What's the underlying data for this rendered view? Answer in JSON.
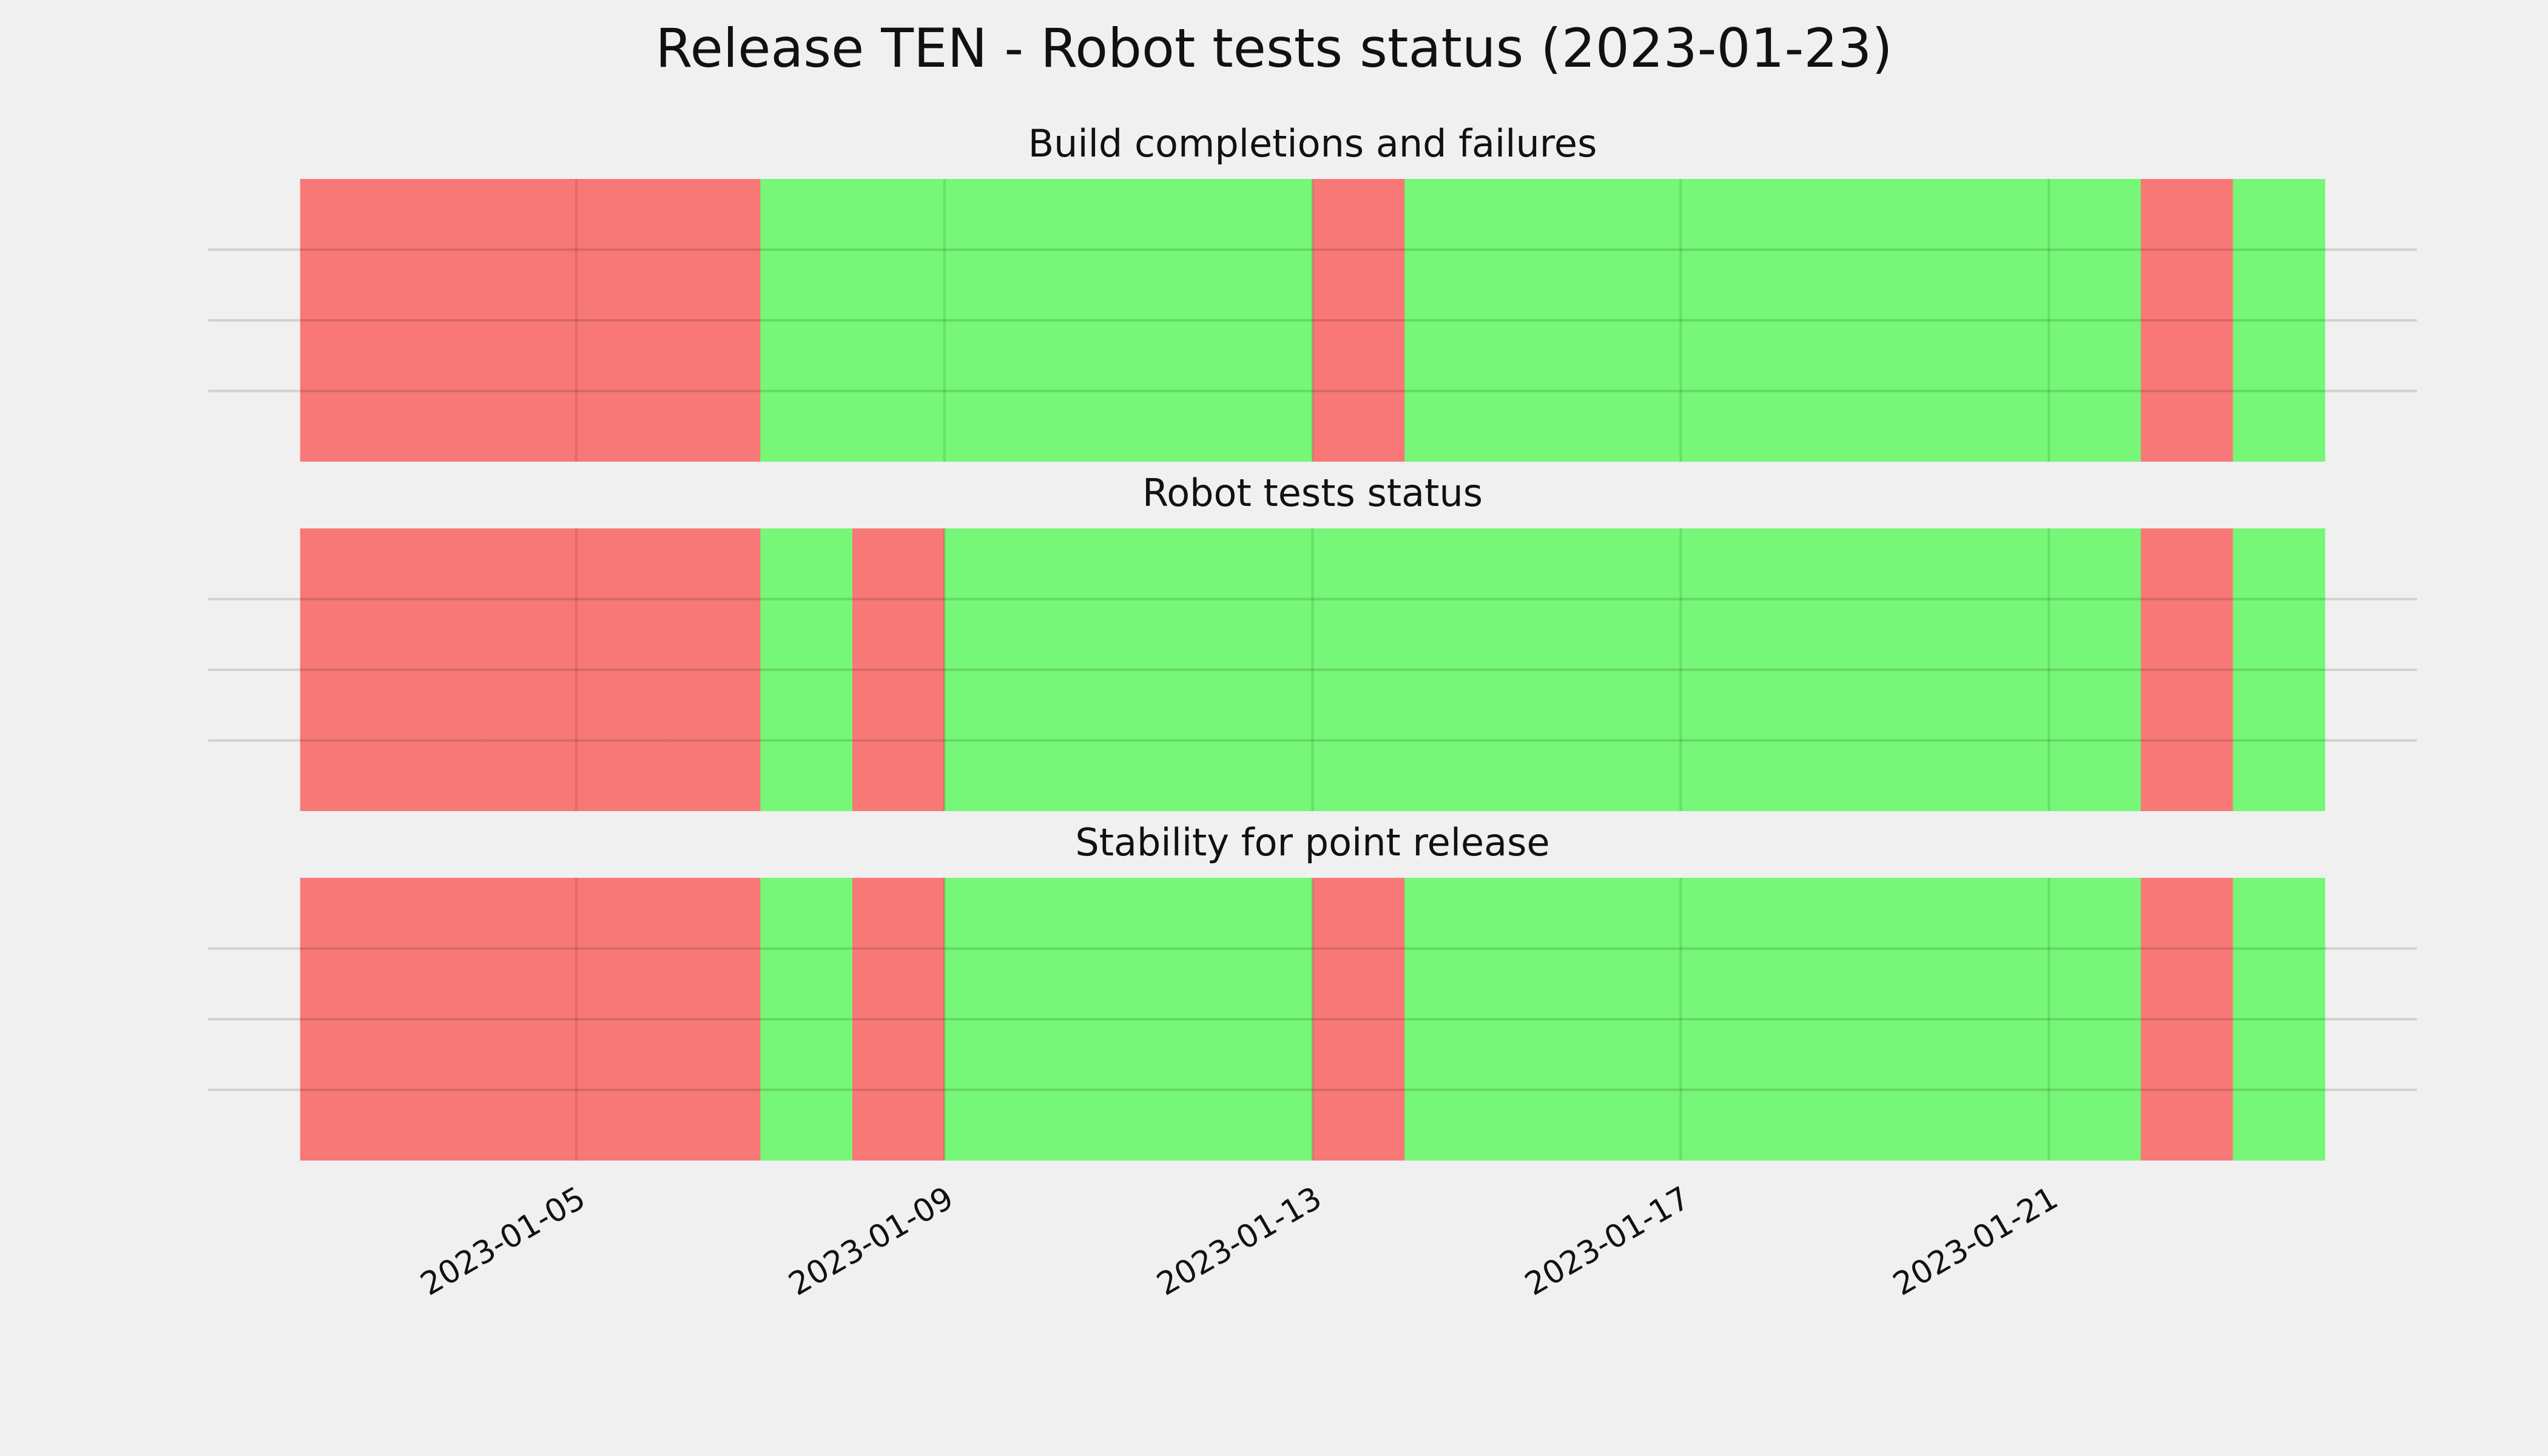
{
  "title": "Release TEN - Robot tests status (2023-01-23)",
  "chart_data": [
    {
      "type": "timeline",
      "title": "Build completions and failures",
      "x": [
        "2023-01-02",
        "2023-01-03",
        "2023-01-04",
        "2023-01-05",
        "2023-01-06",
        "2023-01-07",
        "2023-01-08",
        "2023-01-09",
        "2023-01-10",
        "2023-01-11",
        "2023-01-12",
        "2023-01-13",
        "2023-01-14",
        "2023-01-15",
        "2023-01-16",
        "2023-01-17",
        "2023-01-18",
        "2023-01-19",
        "2023-01-20",
        "2023-01-21",
        "2023-01-22",
        "2023-01-23"
      ],
      "values": [
        0,
        0,
        0,
        0,
        0,
        1,
        1,
        1,
        1,
        1,
        1,
        0,
        1,
        1,
        1,
        1,
        1,
        1,
        1,
        1,
        0,
        1
      ],
      "status_colors": [
        "#f77877",
        "#76f777"
      ],
      "xlim": [
        "2023-01-01",
        "2023-01-25"
      ],
      "xticks": [
        "2023-01-05",
        "2023-01-09",
        "2023-01-13",
        "2023-01-17",
        "2023-01-21"
      ],
      "grid": true
    },
    {
      "type": "timeline",
      "title": "Robot tests status",
      "x": [
        "2023-01-02",
        "2023-01-03",
        "2023-01-04",
        "2023-01-05",
        "2023-01-06",
        "2023-01-07",
        "2023-01-08",
        "2023-01-09",
        "2023-01-10",
        "2023-01-11",
        "2023-01-12",
        "2023-01-13",
        "2023-01-14",
        "2023-01-15",
        "2023-01-16",
        "2023-01-17",
        "2023-01-18",
        "2023-01-19",
        "2023-01-20",
        "2023-01-21",
        "2023-01-22",
        "2023-01-23"
      ],
      "values": [
        0,
        0,
        0,
        0,
        0,
        1,
        0,
        1,
        1,
        1,
        1,
        1,
        1,
        1,
        1,
        1,
        1,
        1,
        1,
        1,
        0,
        1
      ],
      "status_colors": [
        "#f77877",
        "#76f777"
      ],
      "xlim": [
        "2023-01-01",
        "2023-01-25"
      ],
      "xticks": [
        "2023-01-05",
        "2023-01-09",
        "2023-01-13",
        "2023-01-17",
        "2023-01-21"
      ],
      "grid": true
    },
    {
      "type": "timeline",
      "title": "Stability for point release",
      "x": [
        "2023-01-02",
        "2023-01-03",
        "2023-01-04",
        "2023-01-05",
        "2023-01-06",
        "2023-01-07",
        "2023-01-08",
        "2023-01-09",
        "2023-01-10",
        "2023-01-11",
        "2023-01-12",
        "2023-01-13",
        "2023-01-14",
        "2023-01-15",
        "2023-01-16",
        "2023-01-17",
        "2023-01-18",
        "2023-01-19",
        "2023-01-20",
        "2023-01-21",
        "2023-01-22",
        "2023-01-23"
      ],
      "values": [
        0,
        0,
        0,
        0,
        0,
        1,
        0,
        1,
        1,
        1,
        1,
        0,
        1,
        1,
        1,
        1,
        1,
        1,
        1,
        1,
        0,
        1
      ],
      "status_colors": [
        "#f77877",
        "#76f777"
      ],
      "xlim": [
        "2023-01-01",
        "2023-01-25"
      ],
      "xticks": [
        "2023-01-05",
        "2023-01-09",
        "2023-01-13",
        "2023-01-17",
        "2023-01-21"
      ],
      "grid": true,
      "show_xtick_labels": true
    }
  ]
}
